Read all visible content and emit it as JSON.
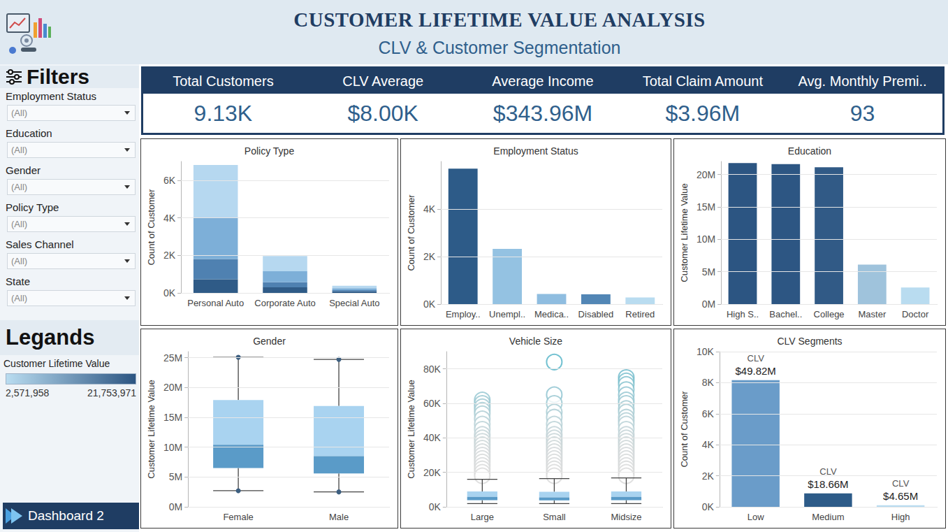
{
  "header": {
    "title": "CUSTOMER LIFETIME VALUE ANALYSIS",
    "subtitle": "CLV & Customer Segmentation"
  },
  "filters": {
    "title": "Filters",
    "items": [
      {
        "label": "Employment Status",
        "value": "(All)"
      },
      {
        "label": "Education",
        "value": "(All)"
      },
      {
        "label": "Gender",
        "value": "(All)"
      },
      {
        "label": "Policy Type",
        "value": "(All)"
      },
      {
        "label": "Sales Channel",
        "value": "(All)"
      },
      {
        "label": "State",
        "value": "(All)"
      }
    ]
  },
  "color_legend": {
    "title": "Legands",
    "name": "Customer Lifetime Value",
    "min": {
      "value": 2571958,
      "label": "2,571,958"
    },
    "max": {
      "value": 21753971,
      "label": "21,753,971"
    }
  },
  "kpis": [
    {
      "label": "Total Customers",
      "value": "9.13K"
    },
    {
      "label": "CLV Average",
      "value": "$8.00K"
    },
    {
      "label": "Average Income",
      "value": "$343.96M"
    },
    {
      "label": "Total Claim Amount",
      "value": "$3.96M"
    },
    {
      "label": "Avg. Monthly Premi..",
      "value": "93"
    }
  ],
  "nav": {
    "label": "Dashboard 2"
  },
  "chart_data": [
    {
      "type": "bar",
      "title": "Policy Type",
      "y_label": "Count of Customer",
      "categories": [
        "Personal Auto",
        "Corporate Auto",
        "Special Auto"
      ],
      "stacked": true,
      "series": [
        {
          "color": "#2f5b87",
          "values": [
            730,
            300,
            80
          ]
        },
        {
          "color": "#4f81b1",
          "values": [
            1080,
            270,
            70
          ]
        },
        {
          "color": "#7dafd8",
          "values": [
            2230,
            580,
            100
          ]
        },
        {
          "color": "#b6d8f0",
          "values": [
            2770,
            810,
            130
          ]
        }
      ],
      "ylim": [
        0,
        7000
      ],
      "yticks": [
        {
          "value": 0,
          "label": "0K"
        },
        {
          "value": 2000,
          "label": "2K"
        },
        {
          "value": 4000,
          "label": "4K"
        },
        {
          "value": 6000,
          "label": "6K"
        }
      ],
      "grid": true
    },
    {
      "type": "bar",
      "title": "Employment Status",
      "y_label": "Count of Customer",
      "categories": [
        "Employ..",
        "Unempl..",
        "Medica..",
        "Disabled",
        "Retired"
      ],
      "values": [
        5700,
        2320,
        430,
        410,
        280
      ],
      "colors": [
        "#2d5b88",
        "#94c2e2",
        "#8fbde0",
        "#5286b5",
        "#b9dcf0"
      ],
      "ylim": [
        0,
        6000
      ],
      "yticks": [
        {
          "value": 0,
          "label": "0K"
        },
        {
          "value": 2000,
          "label": "2K"
        },
        {
          "value": 4000,
          "label": "4K"
        }
      ],
      "grid": true
    },
    {
      "type": "bar",
      "title": "Education",
      "y_label": "Customer Lifetime Value",
      "categories": [
        "High S..",
        "Bachel..",
        "College",
        "Master",
        "Doctor"
      ],
      "values": [
        21753971,
        21600000,
        21100000,
        6100000,
        2571958
      ],
      "ylim": [
        0,
        22000000
      ],
      "yticks": [
        {
          "value": 0,
          "label": "0M"
        },
        {
          "value": 5000000,
          "label": "5M"
        },
        {
          "value": 10000000,
          "label": "10M"
        },
        {
          "value": 15000000,
          "label": "15M"
        },
        {
          "value": 20000000,
          "label": "20M"
        }
      ],
      "grid": true
    },
    {
      "type": "boxplot",
      "title": "Gender",
      "y_label": "Customer Lifetime Value",
      "categories": [
        "Female",
        "Male"
      ],
      "min": [
        2700000,
        2500000
      ],
      "q1": [
        6500000,
        5600000
      ],
      "median": [
        10400000,
        8500000
      ],
      "q3": [
        17900000,
        16900000
      ],
      "max": [
        25050000,
        24700000
      ],
      "ylim": [
        0,
        26000000
      ],
      "yticks": [
        {
          "value": 0,
          "label": "0M"
        },
        {
          "value": 5000000,
          "label": "5M"
        },
        {
          "value": 10000000,
          "label": "10M"
        },
        {
          "value": 15000000,
          "label": "15M"
        },
        {
          "value": 20000000,
          "label": "20M"
        },
        {
          "value": 25000000,
          "label": "25M"
        }
      ],
      "grid": true
    },
    {
      "type": "boxplot",
      "title": "Vehicle Size",
      "y_label": "Customer Lifetime Value",
      "categories": [
        "Large",
        "Small",
        "Midsize"
      ],
      "min": [
        1900,
        1900,
        1900
      ],
      "q1": [
        3900,
        3800,
        3900
      ],
      "median": [
        5800,
        5500,
        5800
      ],
      "q3": [
        8900,
        8700,
        8900
      ],
      "max": [
        16000,
        16400,
        16800
      ],
      "outliers": [
        [
          62000,
          60000,
          58000,
          56000,
          54000,
          51000,
          48000,
          45000,
          42000,
          40000,
          38000,
          36000,
          34000,
          32000,
          30000,
          28000,
          26000,
          24000,
          22000,
          20000,
          18000
        ],
        [
          84000,
          65000,
          60000,
          55000,
          52000,
          48000,
          45000,
          42000,
          40000,
          38000,
          36000,
          34000,
          32000,
          30000,
          28000,
          26000,
          24000,
          22000,
          20000,
          18000
        ],
        [
          75000,
          73000,
          71000,
          68000,
          65000,
          62000,
          60000,
          57000,
          55000,
          52000,
          50000,
          48000,
          45000,
          42000,
          40000,
          38000,
          36000,
          34000,
          32000,
          30000,
          28000,
          26000,
          24000,
          22000,
          20000,
          18000
        ]
      ],
      "ylim": [
        0,
        90000
      ],
      "yticks": [
        {
          "value": 0,
          "label": "0K"
        },
        {
          "value": 20000,
          "label": "20K"
        },
        {
          "value": 40000,
          "label": "40K"
        },
        {
          "value": 60000,
          "label": "60K"
        },
        {
          "value": 80000,
          "label": "80K"
        }
      ],
      "grid": true
    },
    {
      "type": "bar",
      "title": "CLV Segments",
      "y_label": "Count of Customer",
      "categories": [
        "Low",
        "Medium",
        "High"
      ],
      "values": [
        8160,
        870,
        104
      ],
      "colors": [
        "#6a9cc9",
        "#2d5b88",
        "#b9dcf0"
      ],
      "annotation_title": "CLV",
      "annotations": [
        "$49.82M",
        "$18.66M",
        "$4.65M"
      ],
      "ylim": [
        0,
        10000
      ],
      "yticks": [
        {
          "value": 0,
          "label": "0K"
        },
        {
          "value": 2000,
          "label": "2K"
        },
        {
          "value": 4000,
          "label": "4K"
        },
        {
          "value": 6000,
          "label": "6K"
        },
        {
          "value": 8000,
          "label": "8K"
        },
        {
          "value": 10000,
          "label": "10K"
        }
      ],
      "grid": true
    }
  ]
}
